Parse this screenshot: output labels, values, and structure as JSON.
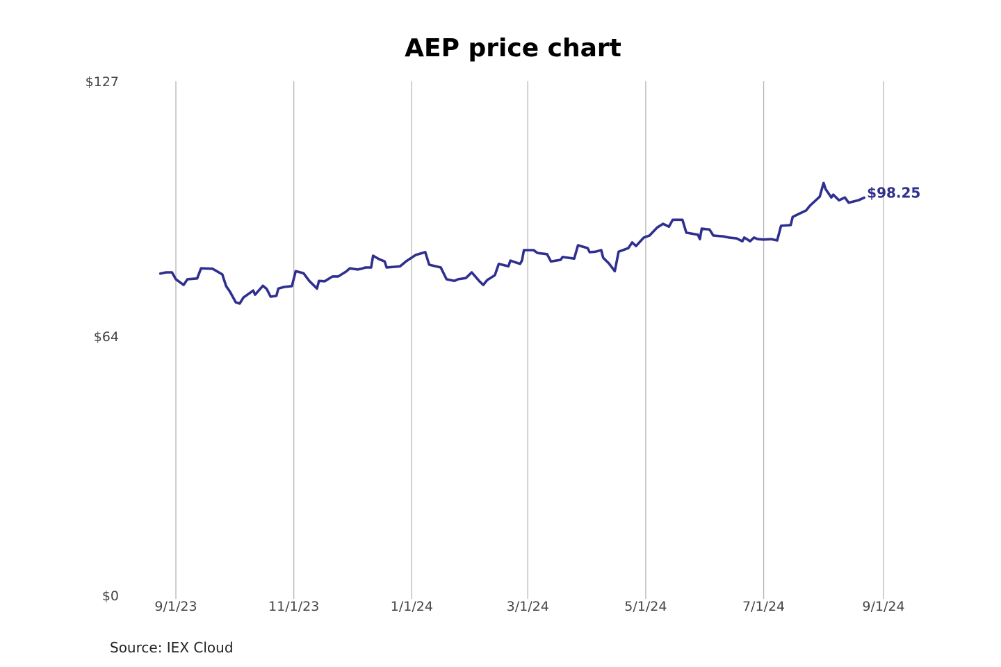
{
  "chart_data": {
    "type": "line",
    "title": "AEP price chart",
    "source": "Source: IEX Cloud",
    "xlabel": "",
    "ylabel": "",
    "ylim": [
      0,
      127
    ],
    "y_ticks": [
      {
        "value": 0,
        "label": "$0"
      },
      {
        "value": 64,
        "label": "$64"
      },
      {
        "value": 127,
        "label": "$127"
      }
    ],
    "x_ticks": [
      {
        "date": "2023-09-01",
        "label": "9/1/23"
      },
      {
        "date": "2023-11-01",
        "label": "11/1/23"
      },
      {
        "date": "2024-01-01",
        "label": "1/1/24"
      },
      {
        "date": "2024-03-01",
        "label": "3/1/24"
      },
      {
        "date": "2024-05-01",
        "label": "5/1/24"
      },
      {
        "date": "2024-07-01",
        "label": "7/1/24"
      },
      {
        "date": "2024-09-01",
        "label": "9/1/24"
      }
    ],
    "grid": "vertical",
    "last_value_label": "$98.25",
    "series": [
      {
        "name": "AEP",
        "color": "#2f2f8f",
        "points": [
          [
            "2023-08-24",
            79.5
          ],
          [
            "2023-08-27",
            79.8
          ],
          [
            "2023-08-30",
            79.8
          ],
          [
            "2023-09-01",
            78.1
          ],
          [
            "2023-09-05",
            76.7
          ],
          [
            "2023-09-07",
            78.1
          ],
          [
            "2023-09-12",
            78.3
          ],
          [
            "2023-09-14",
            80.8
          ],
          [
            "2023-09-20",
            80.7
          ],
          [
            "2023-09-25",
            79.3
          ],
          [
            "2023-09-27",
            76.4
          ],
          [
            "2023-09-29",
            75.0
          ],
          [
            "2023-10-02",
            72.4
          ],
          [
            "2023-10-04",
            72.1
          ],
          [
            "2023-10-06",
            73.6
          ],
          [
            "2023-10-11",
            75.3
          ],
          [
            "2023-10-12",
            74.3
          ],
          [
            "2023-10-16",
            76.5
          ],
          [
            "2023-10-18",
            75.7
          ],
          [
            "2023-10-20",
            73.8
          ],
          [
            "2023-10-23",
            74.0
          ],
          [
            "2023-10-24",
            75.8
          ],
          [
            "2023-10-27",
            76.2
          ],
          [
            "2023-10-31",
            76.4
          ],
          [
            "2023-11-02",
            80.1
          ],
          [
            "2023-11-06",
            79.6
          ],
          [
            "2023-11-09",
            77.7
          ],
          [
            "2023-11-13",
            75.8
          ],
          [
            "2023-11-14",
            77.7
          ],
          [
            "2023-11-17",
            77.6
          ],
          [
            "2023-11-21",
            78.8
          ],
          [
            "2023-11-24",
            78.8
          ],
          [
            "2023-11-28",
            80.0
          ],
          [
            "2023-11-30",
            80.8
          ],
          [
            "2023-12-04",
            80.5
          ],
          [
            "2023-12-06",
            80.7
          ],
          [
            "2023-12-08",
            81.0
          ],
          [
            "2023-12-11",
            81.0
          ],
          [
            "2023-12-12",
            83.9
          ],
          [
            "2023-12-15",
            83.1
          ],
          [
            "2023-12-18",
            82.5
          ],
          [
            "2023-12-19",
            81.0
          ],
          [
            "2023-12-26",
            81.3
          ],
          [
            "2023-12-29",
            82.5
          ],
          [
            "2024-01-03",
            84.1
          ],
          [
            "2024-01-08",
            84.8
          ],
          [
            "2024-01-10",
            81.7
          ],
          [
            "2024-01-16",
            81.0
          ],
          [
            "2024-01-19",
            78.1
          ],
          [
            "2024-01-23",
            77.7
          ],
          [
            "2024-01-25",
            78.1
          ],
          [
            "2024-01-29",
            78.4
          ],
          [
            "2024-02-01",
            79.8
          ],
          [
            "2024-02-05",
            77.6
          ],
          [
            "2024-02-07",
            76.7
          ],
          [
            "2024-02-09",
            77.9
          ],
          [
            "2024-02-13",
            79.1
          ],
          [
            "2024-02-15",
            81.9
          ],
          [
            "2024-02-20",
            81.3
          ],
          [
            "2024-02-21",
            82.7
          ],
          [
            "2024-02-26",
            81.9
          ],
          [
            "2024-02-27",
            82.7
          ],
          [
            "2024-02-28",
            85.3
          ],
          [
            "2024-03-04",
            85.3
          ],
          [
            "2024-03-06",
            84.6
          ],
          [
            "2024-03-11",
            84.3
          ],
          [
            "2024-03-13",
            82.5
          ],
          [
            "2024-03-18",
            82.9
          ],
          [
            "2024-03-19",
            83.6
          ],
          [
            "2024-03-25",
            83.2
          ],
          [
            "2024-03-27",
            86.5
          ],
          [
            "2024-04-01",
            85.8
          ],
          [
            "2024-04-02",
            84.8
          ],
          [
            "2024-04-05",
            84.9
          ],
          [
            "2024-04-08",
            85.3
          ],
          [
            "2024-04-09",
            83.4
          ],
          [
            "2024-04-12",
            82.0
          ],
          [
            "2024-04-15",
            80.1
          ],
          [
            "2024-04-17",
            84.9
          ],
          [
            "2024-04-22",
            85.8
          ],
          [
            "2024-04-24",
            87.2
          ],
          [
            "2024-04-26",
            86.3
          ],
          [
            "2024-04-30",
            88.4
          ],
          [
            "2024-05-03",
            88.9
          ],
          [
            "2024-05-07",
            90.9
          ],
          [
            "2024-05-10",
            91.8
          ],
          [
            "2024-05-13",
            91.1
          ],
          [
            "2024-05-15",
            92.8
          ],
          [
            "2024-05-20",
            92.8
          ],
          [
            "2024-05-22",
            89.6
          ],
          [
            "2024-05-28",
            89.1
          ],
          [
            "2024-05-29",
            88.0
          ],
          [
            "2024-05-30",
            90.6
          ],
          [
            "2024-06-03",
            90.4
          ],
          [
            "2024-06-05",
            88.9
          ],
          [
            "2024-06-10",
            88.7
          ],
          [
            "2024-06-13",
            88.4
          ],
          [
            "2024-06-17",
            88.2
          ],
          [
            "2024-06-20",
            87.5
          ],
          [
            "2024-06-21",
            88.4
          ],
          [
            "2024-06-24",
            87.5
          ],
          [
            "2024-06-26",
            88.4
          ],
          [
            "2024-06-28",
            88.0
          ],
          [
            "2024-07-01",
            87.9
          ],
          [
            "2024-07-05",
            88.0
          ],
          [
            "2024-07-08",
            87.7
          ],
          [
            "2024-07-10",
            91.3
          ],
          [
            "2024-07-15",
            91.5
          ],
          [
            "2024-07-16",
            93.5
          ],
          [
            "2024-07-19",
            94.2
          ],
          [
            "2024-07-23",
            95.1
          ],
          [
            "2024-07-25",
            96.3
          ],
          [
            "2024-07-30",
            98.5
          ],
          [
            "2024-08-01",
            101.9
          ],
          [
            "2024-08-02",
            100.4
          ],
          [
            "2024-08-05",
            98.3
          ],
          [
            "2024-08-06",
            99.0
          ],
          [
            "2024-08-09",
            97.6
          ],
          [
            "2024-08-12",
            98.3
          ],
          [
            "2024-08-14",
            97.0
          ],
          [
            "2024-08-19",
            97.6
          ],
          [
            "2024-08-22",
            98.25
          ]
        ]
      }
    ]
  }
}
